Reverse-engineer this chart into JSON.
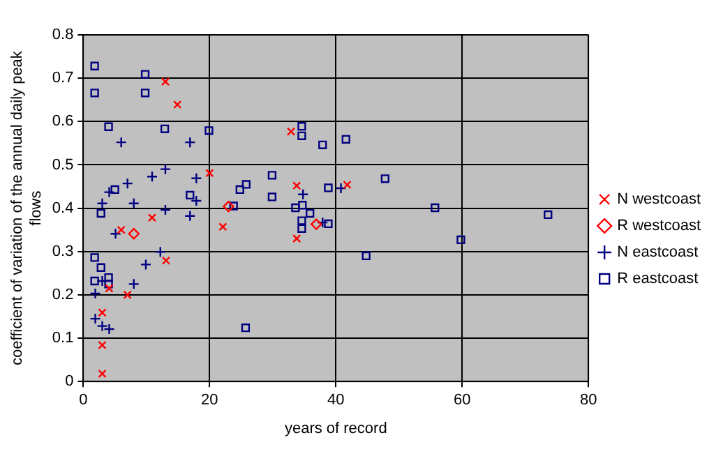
{
  "chart_data": {
    "type": "scatter",
    "xlabel": "years of record",
    "ylabel": "coefficient of variation of the annual daily peak flows",
    "xlim": [
      0,
      80
    ],
    "xticks": [
      0,
      20,
      40,
      60,
      80
    ],
    "ylim": [
      0,
      0.8
    ],
    "yticks": [
      0,
      0.1,
      0.2,
      0.3,
      0.4,
      0.5,
      0.6,
      0.7,
      0.8
    ],
    "grid": true,
    "legend": "right",
    "series": [
      {
        "name": "N westcoast",
        "color": "#ff0000",
        "marker": "cross",
        "x": [
          13.0,
          14.9,
          20.0,
          10.9,
          6.0,
          22.1,
          13.1,
          7.0,
          4.1,
          3.0,
          3.0,
          3.0,
          32.9,
          33.8,
          41.8,
          33.8
        ],
        "values": [
          0.692,
          0.639,
          0.481,
          0.378,
          0.35,
          0.357,
          0.279,
          0.2,
          0.215,
          0.159,
          0.084,
          0.018,
          0.577,
          0.452,
          0.454,
          0.33
        ]
      },
      {
        "name": "R westcoast",
        "color": "#ff0000",
        "marker": "diamond",
        "x": [
          8.0,
          23.0,
          36.9
        ],
        "values": [
          0.341,
          0.404,
          0.363
        ]
      },
      {
        "name": "N eastcoast",
        "color": "#000080",
        "marker": "plus",
        "x": [
          6.0,
          16.9,
          13.0,
          17.9,
          10.9,
          7.0,
          4.1,
          3.0,
          8.0,
          13.0,
          17.9,
          16.9,
          5.1,
          12.2,
          9.9,
          3.0,
          8.0,
          1.9,
          1.9,
          3.0,
          4.1,
          34.8,
          40.8,
          37.9
        ],
        "values": [
          0.552,
          0.552,
          0.49,
          0.469,
          0.473,
          0.457,
          0.437,
          0.411,
          0.411,
          0.396,
          0.417,
          0.382,
          0.341,
          0.299,
          0.27,
          0.232,
          0.225,
          0.203,
          0.145,
          0.128,
          0.121,
          0.432,
          0.446,
          0.367
        ]
      },
      {
        "name": "R eastcoast",
        "color": "#000080",
        "marker": "square",
        "x": [
          1.8,
          1.8,
          9.8,
          9.8,
          4.0,
          12.9,
          19.9,
          5.0,
          2.8,
          16.9,
          23.8,
          1.8,
          2.8,
          1.8,
          4.0,
          4.0,
          34.6,
          34.6,
          37.9,
          41.6,
          29.9,
          25.8,
          24.8,
          29.9,
          38.8,
          47.8,
          33.6,
          34.7,
          35.9,
          34.6,
          34.6,
          38.8,
          44.8,
          25.7,
          55.7,
          59.8,
          73.6
        ],
        "values": [
          0.728,
          0.666,
          0.709,
          0.666,
          0.588,
          0.583,
          0.579,
          0.443,
          0.388,
          0.43,
          0.405,
          0.286,
          0.263,
          0.232,
          0.24,
          0.225,
          0.589,
          0.567,
          0.546,
          0.559,
          0.476,
          0.455,
          0.443,
          0.426,
          0.447,
          0.468,
          0.401,
          0.407,
          0.388,
          0.371,
          0.353,
          0.364,
          0.29,
          0.124,
          0.401,
          0.327,
          0.385
        ]
      }
    ]
  }
}
